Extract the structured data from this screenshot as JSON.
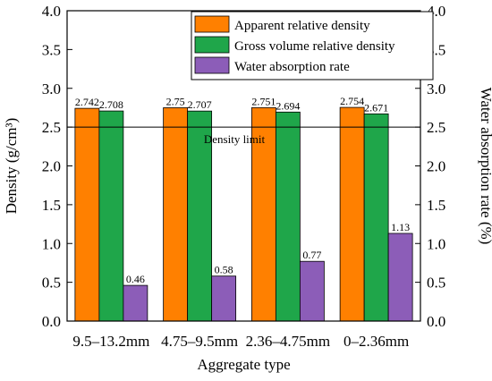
{
  "chart_data": {
    "type": "bar",
    "categories": [
      "9.5–13.2mm",
      "4.75–9.5mm",
      "2.36–4.75mm",
      "0–2.36mm"
    ],
    "series": [
      {
        "name": "Apparent relative density",
        "axis": "left",
        "color": "#ff8000",
        "values": [
          2.742,
          2.75,
          2.751,
          2.754
        ],
        "labels": [
          "2.742",
          "2.75",
          "2.751",
          "2.754"
        ]
      },
      {
        "name": "Gross volume relative density",
        "axis": "left",
        "color": "#1fa64a",
        "values": [
          2.708,
          2.707,
          2.694,
          2.671
        ],
        "labels": [
          "2.708",
          "2.707",
          "2.694",
          "2.671"
        ]
      },
      {
        "name": "Water absorption rate",
        "axis": "right",
        "color": "#8c5db8",
        "values": [
          0.46,
          0.58,
          0.77,
          1.13
        ],
        "labels": [
          "0.46",
          "0.58",
          "0.77",
          "1.13"
        ]
      }
    ],
    "xlabel": "Aggregate type",
    "ylabel": "Density (g/cm³)",
    "y2label": "Water absorption rate (%)",
    "ylim": [
      0,
      4
    ],
    "y2lim": [
      0,
      4
    ],
    "yticks": [
      0.0,
      0.5,
      1.0,
      1.5,
      2.0,
      2.5,
      3.0,
      3.5,
      4.0
    ],
    "ytick_labels": [
      "0.0",
      "0.5",
      "1.0",
      "1.5",
      "2.0",
      "2.5",
      "3.0",
      "3.5",
      "4.0"
    ],
    "reference_line": {
      "value": 2.5,
      "label": "Density limit"
    },
    "legend_position": "top-right",
    "grid": false
  }
}
